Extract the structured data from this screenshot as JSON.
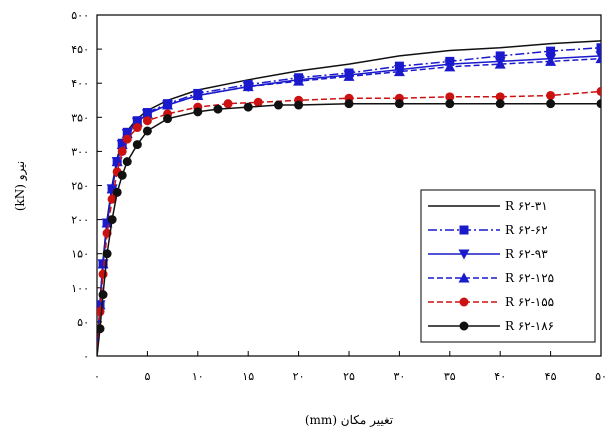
{
  "chart_data": {
    "type": "line",
    "xlabel": "تغییر مکان (mm)",
    "ylabel": "نیرو (kN)",
    "xlim": [
      0,
      50
    ],
    "ylim": [
      0,
      500
    ],
    "x_ticks": [
      0,
      5,
      10,
      15,
      20,
      25,
      30,
      35,
      40,
      45,
      50
    ],
    "x_tick_labels": [
      "۰",
      "۵",
      "۱۰",
      "۱۵",
      "۲۰",
      "۲۵",
      "۳۰",
      "۳۵",
      "۴۰",
      "۴۵",
      "۵۰"
    ],
    "y_ticks": [
      0,
      50,
      100,
      150,
      200,
      250,
      300,
      350,
      400,
      450,
      500
    ],
    "y_tick_labels": [
      "۰",
      "۵۰",
      "۱۰۰",
      "۱۵۰",
      "۲۰۰",
      "۲۵۰",
      "۳۰۰",
      "۳۵۰",
      "۴۰۰",
      "۴۵۰",
      "۵۰۰"
    ],
    "grid": false,
    "legend_position": "lower-right",
    "series": [
      {
        "name": "R ۶۲-۳۱",
        "color": "#111111",
        "dash": "",
        "marker": "none",
        "x": [
          0,
          0.3,
          0.6,
          1,
          1.5,
          2,
          2.5,
          3,
          4,
          5,
          7,
          10,
          15,
          20,
          25,
          30,
          35,
          40,
          45,
          50
        ],
        "y": [
          0,
          80,
          140,
          200,
          250,
          290,
          315,
          330,
          348,
          360,
          375,
          390,
          405,
          418,
          428,
          440,
          448,
          452,
          458,
          462
        ]
      },
      {
        "name": "R ۶۲-۶۲",
        "color": "#1a1acc",
        "dash": "9,3,2,3",
        "marker": "square",
        "x": [
          0,
          0.3,
          0.6,
          1,
          1.5,
          2,
          2.5,
          3,
          4,
          5,
          7,
          10,
          15,
          20,
          25,
          30,
          35,
          40,
          45,
          50
        ],
        "y": [
          0,
          75,
          135,
          195,
          245,
          285,
          312,
          328,
          345,
          357,
          370,
          385,
          398,
          408,
          415,
          425,
          432,
          440,
          447,
          452
        ]
      },
      {
        "name": "R ۶۲-۹۳",
        "color": "#1a1acc",
        "dash": "",
        "marker": "triangle-down",
        "x": [
          0,
          0.3,
          0.6,
          1,
          1.5,
          2,
          2.5,
          3,
          4,
          5,
          7,
          10,
          15,
          20,
          25,
          30,
          35,
          40,
          45,
          50
        ],
        "y": [
          0,
          75,
          135,
          195,
          245,
          285,
          310,
          326,
          343,
          355,
          368,
          382,
          395,
          405,
          412,
          420,
          428,
          432,
          436,
          440
        ]
      },
      {
        "name": "R ۶۲-۱۲۵",
        "color": "#1a1acc",
        "dash": "6,3",
        "marker": "triangle-up",
        "x": [
          0,
          0.3,
          0.6,
          1,
          1.5,
          2,
          2.5,
          3,
          4,
          5,
          7,
          10,
          15,
          20,
          25,
          30,
          35,
          40,
          45,
          50
        ],
        "y": [
          0,
          75,
          135,
          195,
          245,
          285,
          310,
          326,
          343,
          355,
          368,
          382,
          395,
          403,
          410,
          417,
          424,
          428,
          432,
          436
        ]
      },
      {
        "name": "R ۶۲-۱۵۵",
        "color": "#cc1111",
        "dash": "6,3",
        "marker": "circle",
        "x": [
          0,
          0.3,
          0.6,
          1,
          1.5,
          2,
          2.5,
          3,
          4,
          5,
          7,
          10,
          13,
          16,
          20,
          25,
          30,
          35,
          40,
          45,
          50
        ],
        "y": [
          0,
          65,
          120,
          180,
          230,
          270,
          300,
          318,
          335,
          345,
          355,
          365,
          370,
          372,
          375,
          378,
          378,
          380,
          380,
          382,
          388
        ]
      },
      {
        "name": "R ۶۲-۱۸۶",
        "color": "#111111",
        "dash": "",
        "marker": "circle",
        "x": [
          0,
          0.3,
          0.6,
          1,
          1.5,
          2,
          2.5,
          3,
          4,
          5,
          7,
          10,
          12,
          15,
          18,
          20,
          25,
          30,
          35,
          40,
          45,
          50
        ],
        "y": [
          0,
          40,
          90,
          150,
          200,
          240,
          265,
          285,
          310,
          330,
          348,
          358,
          362,
          365,
          368,
          368,
          370,
          370,
          370,
          370,
          370,
          370
        ]
      }
    ]
  }
}
